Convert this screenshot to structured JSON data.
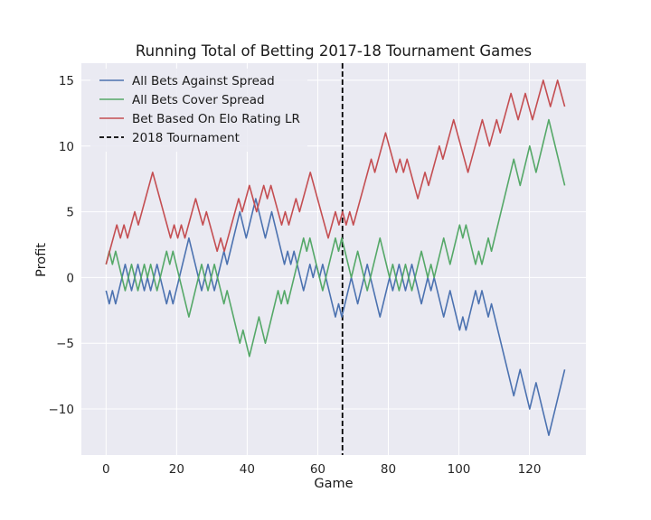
{
  "chart_data": {
    "type": "line",
    "title": "Running Total of Betting 2017-18 Tournament Games",
    "xlabel": "Game",
    "ylabel": "Profit",
    "xlim": [
      -7,
      136
    ],
    "ylim": [
      -13.5,
      16.3
    ],
    "xticks": [
      0,
      20,
      40,
      60,
      80,
      100,
      120
    ],
    "yticks": [
      -10,
      -5,
      0,
      5,
      10,
      15
    ],
    "xtick_labels": [
      "0",
      "20",
      "40",
      "60",
      "80",
      "100",
      "120"
    ],
    "ytick_labels": [
      "−10",
      "−5",
      "0",
      "5",
      "10",
      "15"
    ],
    "grid": true,
    "legend_position": "top-left",
    "background_color": "#eaeaf2",
    "series": [
      {
        "name": "All Bets Against Spread",
        "color": "#4c72b0",
        "values": [
          -1,
          -2,
          -1,
          -2,
          -1,
          0,
          1,
          0,
          -1,
          0,
          1,
          0,
          -1,
          0,
          -1,
          0,
          1,
          0,
          -1,
          -2,
          -1,
          -2,
          -1,
          0,
          1,
          2,
          3,
          2,
          1,
          0,
          -1,
          0,
          1,
          0,
          -1,
          0,
          1,
          2,
          1,
          2,
          3,
          4,
          5,
          4,
          3,
          4,
          5,
          6,
          5,
          4,
          3,
          4,
          5,
          4,
          3,
          2,
          1,
          2,
          1,
          2,
          1,
          0,
          -1,
          0,
          1,
          0,
          1,
          0,
          1,
          0,
          -1,
          -2,
          -3,
          -2,
          -3,
          -2,
          -1,
          0,
          -1,
          -2,
          -1,
          0,
          1,
          0,
          -1,
          -2,
          -3,
          -2,
          -1,
          0,
          -1,
          0,
          1,
          0,
          -1,
          0,
          1,
          0,
          -1,
          -2,
          -1,
          0,
          -1,
          0,
          -1,
          -2,
          -3,
          -2,
          -1,
          -2,
          -3,
          -4,
          -3,
          -4,
          -3,
          -2,
          -1,
          -2,
          -1,
          -2,
          -3,
          -2,
          -3,
          -4,
          -5,
          -6,
          -7,
          -8,
          -9,
          -8,
          -7,
          -8,
          -9,
          -10,
          -9,
          -8,
          -9,
          -10,
          -11,
          -12,
          -11,
          -10,
          -9,
          -8,
          -7
        ]
      },
      {
        "name": "All Bets Cover Spread",
        "color": "#55a868",
        "values": [
          1,
          2,
          1,
          2,
          1,
          0,
          -1,
          0,
          1,
          0,
          -1,
          0,
          1,
          0,
          1,
          0,
          -1,
          0,
          1,
          2,
          1,
          2,
          1,
          0,
          -1,
          -2,
          -3,
          -2,
          -1,
          0,
          1,
          0,
          -1,
          0,
          1,
          0,
          -1,
          -2,
          -1,
          -2,
          -3,
          -4,
          -5,
          -4,
          -5,
          -6,
          -5,
          -4,
          -3,
          -4,
          -5,
          -4,
          -3,
          -2,
          -1,
          -2,
          -1,
          -2,
          -1,
          0,
          1,
          2,
          3,
          2,
          3,
          2,
          1,
          0,
          -1,
          0,
          1,
          2,
          3,
          2,
          3,
          2,
          1,
          0,
          1,
          2,
          1,
          0,
          -1,
          0,
          1,
          2,
          3,
          2,
          1,
          0,
          1,
          0,
          -1,
          0,
          1,
          0,
          -1,
          0,
          1,
          2,
          1,
          0,
          1,
          0,
          1,
          2,
          3,
          2,
          1,
          2,
          3,
          4,
          3,
          4,
          3,
          2,
          1,
          2,
          1,
          2,
          3,
          2,
          3,
          4,
          5,
          6,
          7,
          8,
          9,
          8,
          7,
          8,
          9,
          10,
          9,
          8,
          9,
          10,
          11,
          12,
          11,
          10,
          9,
          8,
          7
        ]
      },
      {
        "name": "Bet Based On Elo Rating LR",
        "color": "#c44e52",
        "values": [
          1,
          2,
          3,
          4,
          3,
          4,
          3,
          4,
          5,
          4,
          5,
          6,
          7,
          8,
          7,
          6,
          5,
          4,
          3,
          4,
          3,
          4,
          3,
          4,
          5,
          6,
          5,
          4,
          5,
          4,
          3,
          2,
          3,
          2,
          3,
          4,
          5,
          6,
          5,
          6,
          7,
          6,
          5,
          6,
          7,
          6,
          7,
          6,
          5,
          4,
          5,
          4,
          5,
          6,
          5,
          6,
          7,
          8,
          7,
          6,
          5,
          4,
          3,
          4,
          5,
          4,
          5,
          4,
          5,
          4,
          5,
          6,
          7,
          8,
          9,
          8,
          9,
          10,
          11,
          10,
          9,
          8,
          9,
          8,
          9,
          8,
          7,
          6,
          7,
          8,
          7,
          8,
          9,
          10,
          9,
          10,
          11,
          12,
          11,
          10,
          9,
          8,
          9,
          10,
          11,
          12,
          11,
          10,
          11,
          12,
          11,
          12,
          13,
          14,
          13,
          12,
          13,
          14,
          13,
          12,
          13,
          14,
          15,
          14,
          13,
          14,
          15,
          14,
          13
        ]
      }
    ],
    "reference_line": {
      "name": "2018 Tournament",
      "x": 67,
      "color": "#000000",
      "style": "dashed"
    }
  }
}
